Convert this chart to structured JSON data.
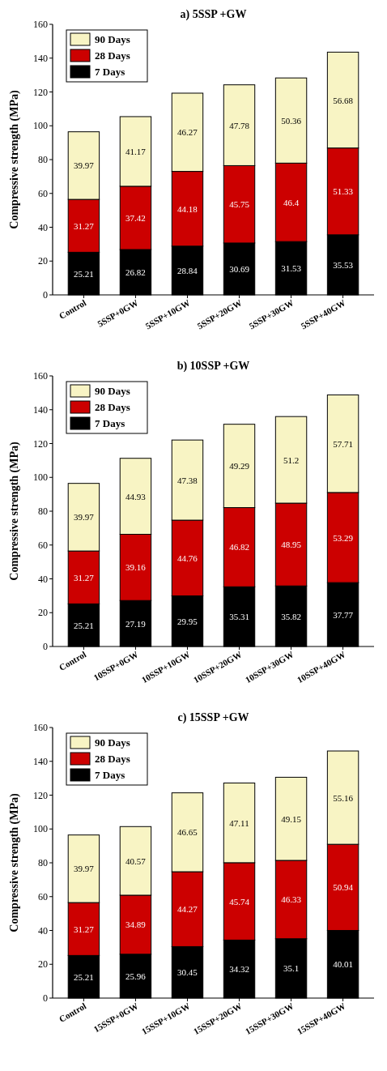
{
  "chart_data": [
    {
      "type": "bar",
      "title": "a) 5SSP +GW",
      "ylabel": "Compressive strength (MPa)",
      "categories": [
        "Control",
        "5SSP+0GW",
        "5SSP+10GW",
        "5SSP+20GW",
        "5SSP+30GW",
        "5SSP+40GW"
      ],
      "stacked": true,
      "ylim": [
        0,
        160
      ],
      "yticks": [
        0,
        20,
        40,
        60,
        80,
        100,
        120,
        140,
        160
      ],
      "legend": "top left",
      "data_labels": true,
      "series": [
        {
          "name": "7 Days",
          "color": "#000000",
          "values": [
            25.21,
            26.82,
            28.84,
            30.69,
            31.53,
            35.53
          ]
        },
        {
          "name": "28 Days",
          "color": "#cc0000",
          "values": [
            31.27,
            37.42,
            44.18,
            45.75,
            46.4,
            51.33
          ]
        },
        {
          "name": "90 Days",
          "color": "#f8f4c4",
          "values": [
            39.97,
            41.17,
            46.27,
            47.78,
            50.36,
            56.68
          ]
        }
      ]
    },
    {
      "type": "bar",
      "title": "b) 10SSP +GW",
      "ylabel": "Compressive strength (MPa)",
      "categories": [
        "Control",
        "10SSP+0GW",
        "10SSP+10GW",
        "10SSP+20GW",
        "10SSP+30GW",
        "10SSP+40GW"
      ],
      "stacked": true,
      "ylim": [
        0,
        160
      ],
      "yticks": [
        0,
        20,
        40,
        60,
        80,
        100,
        120,
        140,
        160
      ],
      "legend": "top left",
      "data_labels": true,
      "series": [
        {
          "name": "7 Days",
          "color": "#000000",
          "values": [
            25.21,
            27.19,
            29.95,
            35.31,
            35.82,
            37.77
          ]
        },
        {
          "name": "28 Days",
          "color": "#cc0000",
          "values": [
            31.27,
            39.16,
            44.76,
            46.82,
            48.95,
            53.29
          ]
        },
        {
          "name": "90 Days",
          "color": "#f8f4c4",
          "values": [
            39.97,
            44.93,
            47.38,
            49.29,
            51.2,
            57.71
          ]
        }
      ]
    },
    {
      "type": "bar",
      "title": "c) 15SSP +GW",
      "ylabel": "Compressive strength (MPa)",
      "categories": [
        "Control",
        "15SSP+0GW",
        "15SSP+10GW",
        "15SSP+20GW",
        "15SSP+30GW",
        "15SSP+40GW"
      ],
      "stacked": true,
      "ylim": [
        0,
        160
      ],
      "yticks": [
        0,
        20,
        40,
        60,
        80,
        100,
        120,
        140,
        160
      ],
      "legend": "top left",
      "data_labels": true,
      "series": [
        {
          "name": "7 Days",
          "color": "#000000",
          "values": [
            25.21,
            25.96,
            30.45,
            34.32,
            35.1,
            40.01
          ]
        },
        {
          "name": "28 Days",
          "color": "#cc0000",
          "values": [
            31.27,
            34.89,
            44.27,
            45.74,
            46.33,
            50.94
          ]
        },
        {
          "name": "90 Days",
          "color": "#f8f4c4",
          "values": [
            39.97,
            40.57,
            46.65,
            47.11,
            49.15,
            55.16
          ]
        }
      ]
    }
  ]
}
